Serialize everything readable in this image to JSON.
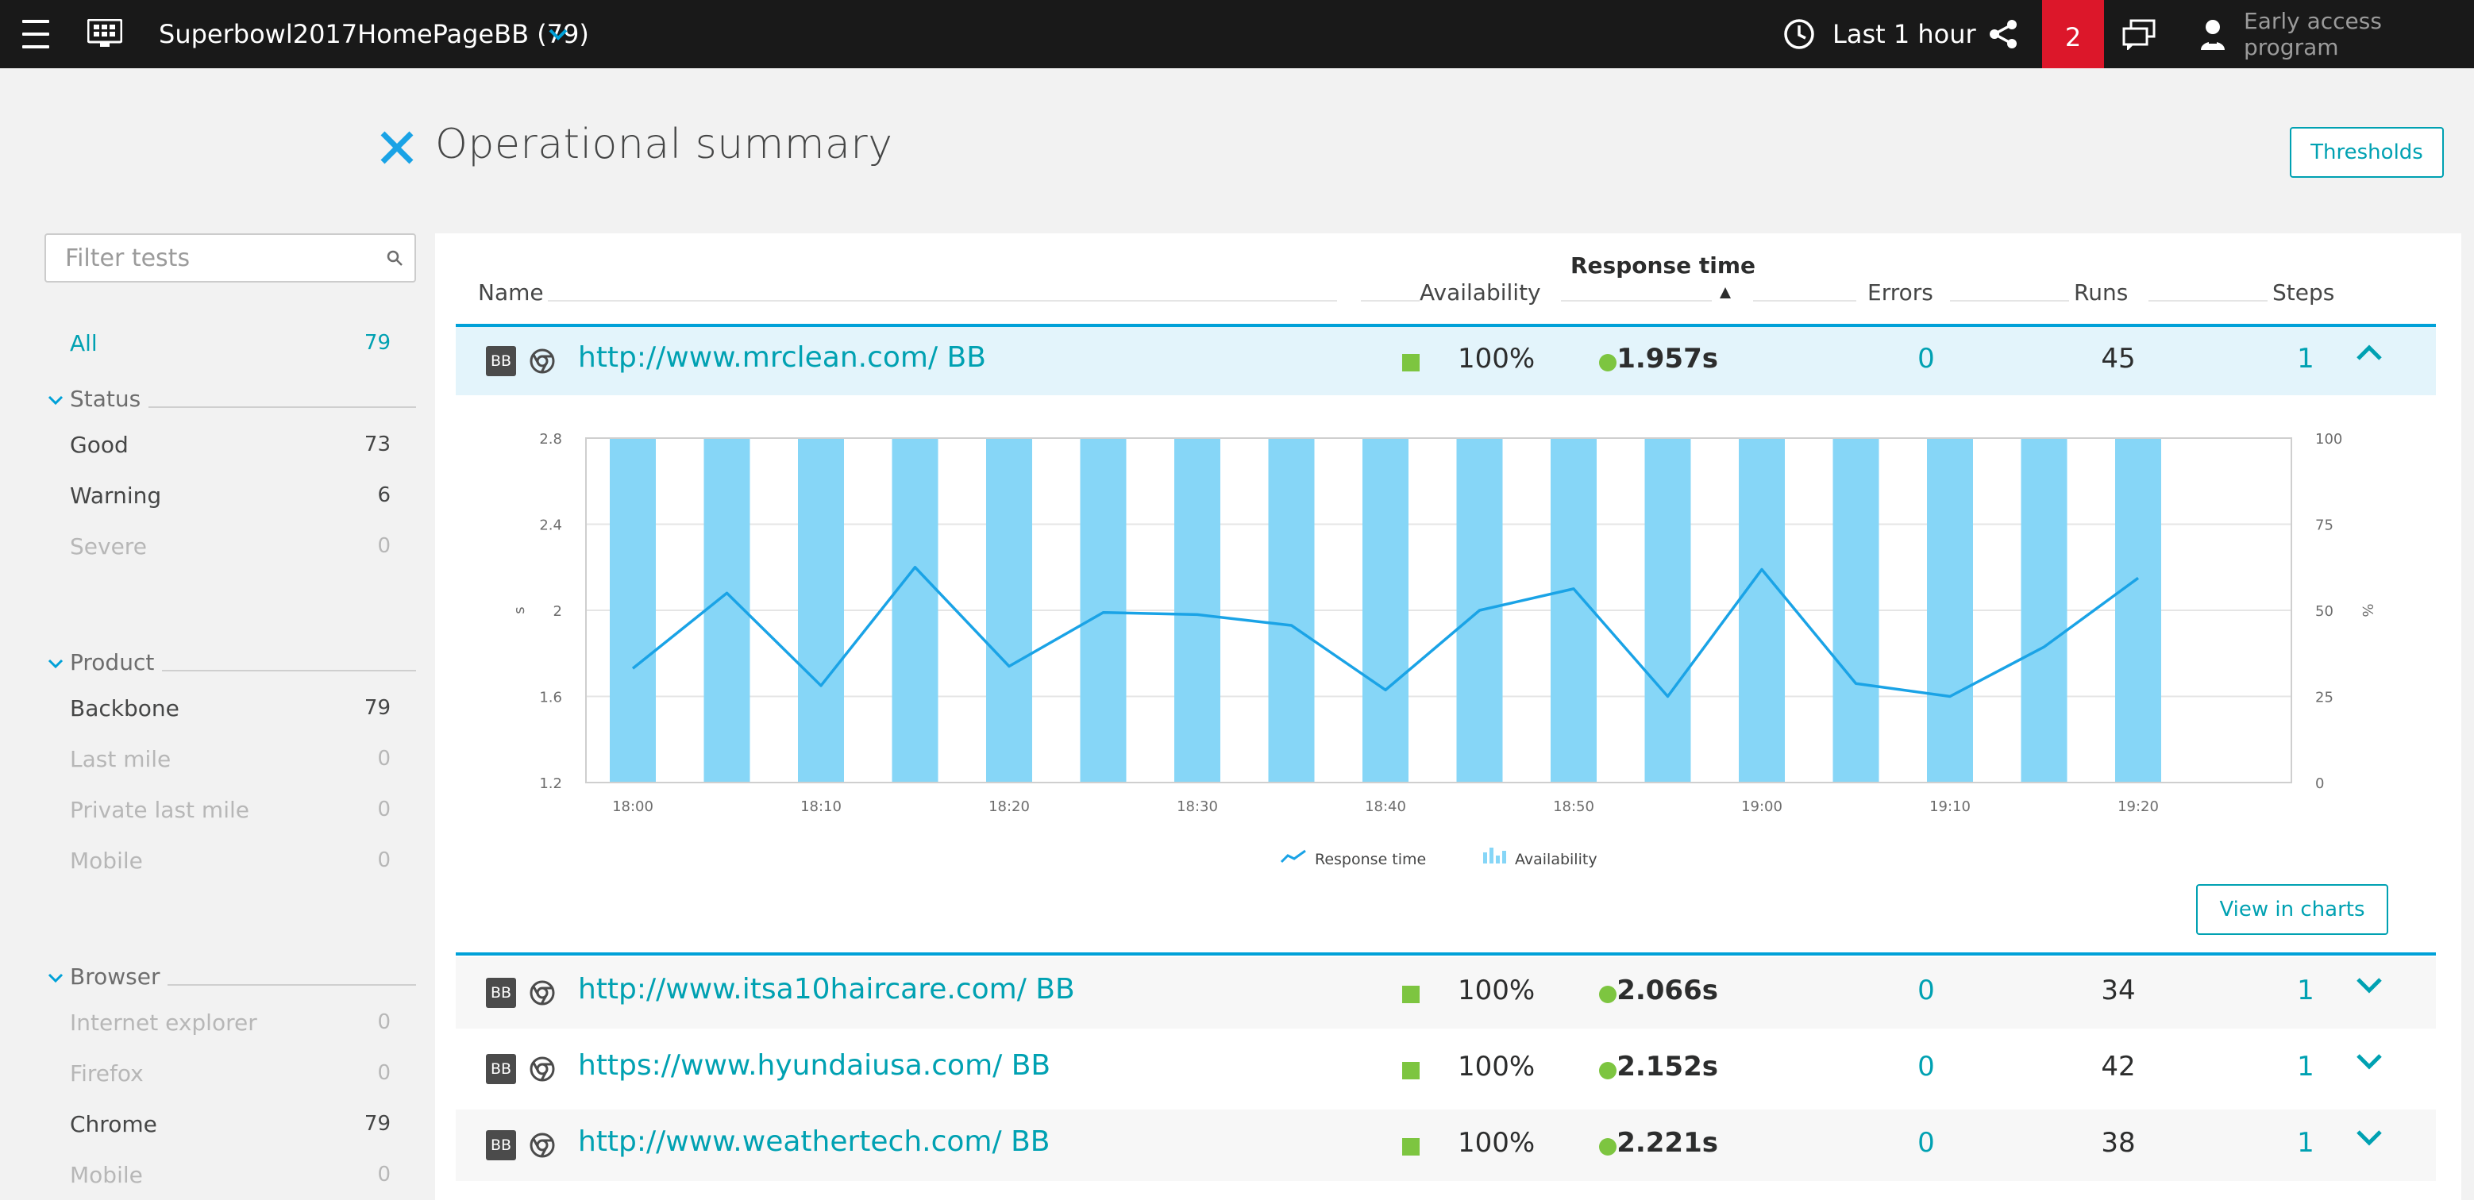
{
  "topbar": {
    "title": "Superbowl2017HomePageBB (79)",
    "timeframe": "Last 1 hour",
    "notification_count": "2",
    "early_access": "Early access program"
  },
  "header": {
    "title": "Operational summary",
    "thresholds_label": "Thresholds"
  },
  "sidebar": {
    "filter_placeholder": "Filter tests",
    "all": {
      "label": "All",
      "count": "79"
    },
    "status": {
      "title": "Status",
      "items": [
        {
          "label": "Good",
          "count": "73"
        },
        {
          "label": "Warning",
          "count": "6"
        },
        {
          "label": "Severe",
          "count": "0"
        }
      ]
    },
    "product": {
      "title": "Product",
      "items": [
        {
          "label": "Backbone",
          "count": "79"
        },
        {
          "label": "Last mile",
          "count": "0"
        },
        {
          "label": "Private last mile",
          "count": "0"
        },
        {
          "label": "Mobile",
          "count": "0"
        }
      ]
    },
    "browser": {
      "title": "Browser",
      "items": [
        {
          "label": "Internet explorer",
          "count": "0"
        },
        {
          "label": "Firefox",
          "count": "0"
        },
        {
          "label": "Chrome",
          "count": "79"
        },
        {
          "label": "Mobile",
          "count": "0"
        }
      ]
    }
  },
  "table": {
    "columns": {
      "name": "Name",
      "availability": "Availability",
      "response_time": "Response time",
      "errors": "Errors",
      "runs": "Runs",
      "steps": "Steps"
    },
    "rows": [
      {
        "badge": "BB",
        "url": "http://www.mrclean.com/ BB",
        "availability": "100%",
        "response_time": "1.957s",
        "errors": "0",
        "runs": "45",
        "steps": "1"
      },
      {
        "badge": "BB",
        "url": "http://www.itsa10haircare.com/ BB",
        "availability": "100%",
        "response_time": "2.066s",
        "errors": "0",
        "runs": "34",
        "steps": "1"
      },
      {
        "badge": "BB",
        "url": "https://www.hyundaiusa.com/ BB",
        "availability": "100%",
        "response_time": "2.152s",
        "errors": "0",
        "runs": "42",
        "steps": "1"
      },
      {
        "badge": "BB",
        "url": "http://www.weathertech.com/ BB",
        "availability": "100%",
        "response_time": "2.221s",
        "errors": "0",
        "runs": "38",
        "steps": "1"
      }
    ],
    "view_in_charts": "View in charts"
  },
  "colors": {
    "accent": "#00a1b2",
    "good": "#7dc540",
    "alert": "#dc172a",
    "bar": "#86d6f7",
    "line": "#1aa3e6"
  },
  "chart_data": {
    "type": "bar",
    "x_ticks": [
      "18:00",
      "18:10",
      "18:20",
      "18:30",
      "18:40",
      "18:50",
      "19:00",
      "19:10",
      "19:20"
    ],
    "x_times": [
      "18:00",
      "18:05",
      "18:10",
      "18:15",
      "18:20",
      "18:25",
      "18:30",
      "18:35",
      "18:40",
      "18:45",
      "18:50",
      "18:55",
      "19:00",
      "19:05",
      "19:10",
      "19:15",
      "19:20"
    ],
    "availability": [
      100,
      100,
      100,
      100,
      100,
      100,
      100,
      100,
      100,
      100,
      100,
      100,
      100,
      100,
      100,
      100,
      100
    ],
    "response_time": [
      1.73,
      2.08,
      1.65,
      2.2,
      1.74,
      1.99,
      1.98,
      1.93,
      1.63,
      2.0,
      2.1,
      1.6,
      2.19,
      1.66,
      1.6,
      1.83,
      2.15
    ],
    "y_left": {
      "label": "s",
      "ticks": [
        "2.8",
        "2.4",
        "2",
        "1.6",
        "1.2"
      ],
      "range": [
        1.2,
        2.8
      ]
    },
    "y_right": {
      "label": "%",
      "ticks": [
        "100",
        "75",
        "50",
        "25",
        "0"
      ],
      "range": [
        0,
        100
      ]
    },
    "legend": [
      "Response time",
      "Availability"
    ],
    "legend_placement": "bottom-center",
    "grid": true
  }
}
